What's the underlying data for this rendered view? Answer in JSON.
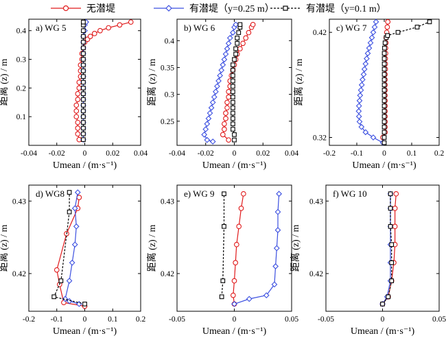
{
  "legend": {
    "series": [
      {
        "label": "无潜堤",
        "color": "#e0191a",
        "marker": "circle",
        "dash": false
      },
      {
        "label": "有潜堤（y=0.25 m）",
        "color": "#3b4fe0",
        "marker": "diamond",
        "dash": false
      },
      {
        "label": "有潜堤（y=0.1 m）",
        "color": "#000000",
        "marker": "square",
        "dash": true
      }
    ]
  },
  "xlabel": "Umean / (m·s⁻¹)",
  "ylabel": "距离 (z) / m",
  "chart_data": [
    {
      "type": "line",
      "title": "a) WG 5",
      "xlim": [
        -0.04,
        0.04
      ],
      "ylim": [
        0,
        0.44
      ],
      "xticks": [
        -0.04,
        -0.02,
        0,
        0.02,
        0.04
      ],
      "xtick_labels": [
        "-0.04",
        "-0.02",
        "0",
        "0.02",
        "0.04"
      ],
      "yticks": [
        0.1,
        0.2,
        0.3,
        0.4
      ],
      "ytick_labels": [
        "0.1",
        "0.2",
        "0.3",
        "0.4"
      ],
      "series": [
        {
          "y": [
            0.02,
            0.04,
            0.06,
            0.08,
            0.1,
            0.12,
            0.14,
            0.16,
            0.18,
            0.2,
            0.22,
            0.24,
            0.26,
            0.28,
            0.3,
            0.32,
            0.34,
            0.36,
            0.37,
            0.38,
            0.39,
            0.4,
            0.41,
            0.42,
            0.43
          ],
          "x": [
            -0.004,
            -0.005,
            -0.005,
            -0.005,
            -0.006,
            -0.006,
            -0.006,
            -0.005,
            -0.005,
            -0.004,
            -0.004,
            -0.003,
            -0.003,
            -0.003,
            -0.002,
            -0.002,
            -0.001,
            0.0,
            0.002,
            0.004,
            0.007,
            0.011,
            0.017,
            0.025,
            0.033
          ]
        },
        {
          "y": [
            0.02,
            0.04,
            0.06,
            0.08,
            0.1,
            0.12,
            0.14,
            0.16,
            0.18,
            0.2,
            0.22,
            0.24,
            0.26,
            0.28,
            0.3,
            0.32,
            0.34,
            0.36,
            0.38,
            0.4,
            0.42,
            0.43
          ],
          "x": [
            -0.001,
            -0.001,
            -0.001,
            -0.001,
            -0.001,
            -0.001,
            -0.001,
            -0.001,
            -0.001,
            -0.001,
            -0.001,
            -0.001,
            -0.001,
            -0.001,
            -0.001,
            -0.001,
            -0.001,
            -0.001,
            -0.001,
            0.0,
            0.0,
            0.001
          ]
        },
        {
          "y": [
            0.02,
            0.04,
            0.06,
            0.08,
            0.1,
            0.12,
            0.14,
            0.16,
            0.18,
            0.2,
            0.22,
            0.24,
            0.26,
            0.28,
            0.3,
            0.32,
            0.34,
            0.36,
            0.38,
            0.4,
            0.42,
            0.43
          ],
          "x": [
            -0.001,
            -0.001,
            -0.001,
            -0.001,
            -0.001,
            -0.001,
            -0.001,
            -0.001,
            -0.001,
            -0.001,
            -0.001,
            -0.001,
            -0.001,
            -0.001,
            -0.001,
            -0.001,
            -0.001,
            -0.001,
            -0.001,
            -0.001,
            -0.001,
            -0.001
          ]
        }
      ]
    },
    {
      "type": "line",
      "title": "b) WG 6",
      "xlim": [
        -0.04,
        0.04
      ],
      "ylim": [
        0.205,
        0.44
      ],
      "xticks": [
        -0.04,
        -0.02,
        0,
        0.02,
        0.04
      ],
      "xtick_labels": [
        "-0.04",
        "-0.02",
        "0",
        "0.02",
        "0.04"
      ],
      "yticks": [
        0.25,
        0.3,
        0.35,
        0.4
      ],
      "ytick_labels": [
        "0.25",
        "0.3",
        "0.35",
        "0.4"
      ],
      "series": [
        {
          "y": [
            0.215,
            0.225,
            0.235,
            0.245,
            0.255,
            0.265,
            0.275,
            0.285,
            0.295,
            0.305,
            0.315,
            0.325,
            0.335,
            0.345,
            0.355,
            0.365,
            0.375,
            0.385,
            0.395,
            0.405,
            0.415,
            0.425,
            0.43
          ],
          "x": [
            -0.004,
            -0.008,
            -0.007,
            -0.007,
            -0.006,
            -0.006,
            -0.005,
            -0.005,
            -0.004,
            -0.004,
            -0.003,
            -0.003,
            -0.002,
            -0.001,
            0.0,
            0.001,
            0.002,
            0.004,
            0.006,
            0.008,
            0.01,
            0.012,
            0.013
          ]
        },
        {
          "y": [
            0.212,
            0.215,
            0.225,
            0.235,
            0.245,
            0.255,
            0.265,
            0.275,
            0.285,
            0.295,
            0.305,
            0.315,
            0.325,
            0.335,
            0.345,
            0.355,
            0.365,
            0.375,
            0.385,
            0.395,
            0.405,
            0.415,
            0.425,
            0.43
          ],
          "x": [
            -0.015,
            -0.019,
            -0.021,
            -0.02,
            -0.019,
            -0.018,
            -0.017,
            -0.016,
            -0.015,
            -0.014,
            -0.013,
            -0.012,
            -0.011,
            -0.01,
            -0.009,
            -0.008,
            -0.007,
            -0.006,
            -0.005,
            -0.004,
            -0.003,
            -0.001,
            0.0,
            0.001
          ]
        },
        {
          "y": [
            0.215,
            0.225,
            0.235,
            0.245,
            0.255,
            0.265,
            0.275,
            0.285,
            0.295,
            0.305,
            0.315,
            0.325,
            0.335,
            0.345,
            0.355,
            0.365,
            0.375,
            0.385,
            0.395,
            0.405,
            0.415,
            0.425,
            0.43
          ],
          "x": [
            0.0,
            0.0,
            -0.001,
            -0.001,
            -0.001,
            -0.001,
            -0.001,
            -0.001,
            -0.001,
            -0.001,
            -0.001,
            -0.001,
            -0.001,
            -0.001,
            -0.001,
            0.0,
            0.001,
            0.001,
            0.002,
            0.002,
            0.003,
            0.004,
            0.004
          ]
        }
      ]
    },
    {
      "type": "line",
      "title": "c) WG 7",
      "xlim": [
        -0.2,
        0.2
      ],
      "ylim": [
        0.3125,
        0.4325
      ],
      "xticks": [
        -0.2,
        -0.1,
        0,
        0.1,
        0.2
      ],
      "xtick_labels": [
        "-0.2",
        "-0.1",
        "0",
        "0.1",
        "0.2"
      ],
      "yticks": [
        0.32,
        0.42
      ],
      "ytick_labels": [
        "0.32",
        "0.42"
      ],
      "series": [
        {
          "y": [
            0.32,
            0.325,
            0.33,
            0.335,
            0.34,
            0.345,
            0.35,
            0.355,
            0.36,
            0.365,
            0.37,
            0.375,
            0.38,
            0.385,
            0.39,
            0.395,
            0.4,
            0.405,
            0.41,
            0.415,
            0.42,
            0.425,
            0.43
          ],
          "x": [
            -0.005,
            0.003,
            0.003,
            0.003,
            0.003,
            0.003,
            0.003,
            0.003,
            0.003,
            0.003,
            0.003,
            0.003,
            0.003,
            0.004,
            0.004,
            0.004,
            0.005,
            0.005,
            0.006,
            0.007,
            0.009,
            0.011,
            0.013
          ]
        },
        {
          "y": [
            0.315,
            0.32,
            0.325,
            0.33,
            0.335,
            0.34,
            0.345,
            0.35,
            0.355,
            0.36,
            0.365,
            0.37,
            0.375,
            0.38,
            0.385,
            0.39,
            0.395,
            0.4,
            0.405,
            0.41,
            0.415,
            0.42,
            0.425,
            0.43
          ],
          "x": [
            -0.005,
            -0.04,
            -0.068,
            -0.083,
            -0.09,
            -0.092,
            -0.093,
            -0.092,
            -0.09,
            -0.088,
            -0.085,
            -0.082,
            -0.079,
            -0.075,
            -0.072,
            -0.068,
            -0.064,
            -0.06,
            -0.055,
            -0.05,
            -0.045,
            -0.04,
            -0.035,
            -0.03
          ]
        },
        {
          "y": [
            0.315,
            0.32,
            0.325,
            0.33,
            0.335,
            0.34,
            0.345,
            0.35,
            0.355,
            0.36,
            0.365,
            0.37,
            0.375,
            0.38,
            0.385,
            0.39,
            0.395,
            0.4,
            0.405,
            0.41,
            0.415,
            0.417,
            0.42,
            0.425,
            0.43
          ],
          "x": [
            0.0,
            0.0,
            0.0,
            0.0,
            0.0,
            0.0,
            0.0,
            0.0,
            0.0,
            0.0,
            0.0,
            0.0,
            0.0,
            0.0,
            0.0,
            0.0,
            0.0,
            0.0,
            0.001,
            0.003,
            0.007,
            0.012,
            0.05,
            0.12,
            0.165
          ]
        }
      ]
    },
    {
      "type": "line",
      "title": "d) WG8",
      "xlim": [
        -0.2,
        0.2
      ],
      "ylim": [
        0.4148,
        0.4322
      ],
      "xticks": [
        -0.2,
        -0.1,
        0,
        0.1,
        0.2
      ],
      "xtick_labels": [
        "-0.2",
        "-0.1",
        "0",
        "0.1",
        "0.2"
      ],
      "yticks": [
        0.42,
        0.43
      ],
      "ytick_labels": [
        "0.42",
        "0.43"
      ],
      "series": [
        {
          "y": [
            0.4155,
            0.416,
            0.4185,
            0.4205,
            0.4255,
            0.429,
            0.4305
          ],
          "x": [
            0.0,
            -0.075,
            -0.09,
            -0.1,
            -0.065,
            -0.025,
            -0.02
          ]
        },
        {
          "y": [
            0.4158,
            0.4162,
            0.4165,
            0.419,
            0.4215,
            0.424,
            0.4265,
            0.429,
            0.4312
          ],
          "x": [
            -0.02,
            -0.055,
            -0.07,
            -0.055,
            -0.045,
            -0.035,
            -0.03,
            -0.035,
            -0.025
          ]
        },
        {
          "y": [
            0.4158,
            0.4168,
            0.419,
            0.4285,
            0.4312
          ],
          "x": [
            0.0,
            -0.11,
            -0.085,
            -0.055,
            -0.055
          ]
        }
      ]
    },
    {
      "type": "line",
      "title": "e) WG 9",
      "xlim": [
        -0.05,
        0.05
      ],
      "ylim": [
        0.4148,
        0.4322
      ],
      "xticks": [
        -0.05,
        0,
        0.05
      ],
      "xtick_labels": [
        "-0.05",
        "0",
        "0.05"
      ],
      "yticks": [
        0.42,
        0.43
      ],
      "ytick_labels": [
        "0.42",
        "0.43"
      ],
      "series": [
        {
          "y": [
            0.4158,
            0.417,
            0.419,
            0.4215,
            0.424,
            0.4265,
            0.429,
            0.431
          ],
          "x": [
            0.0,
            -0.001,
            0.0,
            0.001,
            0.002,
            0.004,
            0.006,
            0.008
          ]
        },
        {
          "y": [
            0.4158,
            0.4165,
            0.417,
            0.4185,
            0.421,
            0.4235,
            0.426,
            0.4285,
            0.431
          ],
          "x": [
            0.0,
            0.013,
            0.028,
            0.035,
            0.036,
            0.037,
            0.038,
            0.038,
            0.039
          ]
        },
        {
          "y": [
            0.4168,
            0.419,
            0.4265,
            0.431
          ],
          "x": [
            -0.011,
            -0.01,
            -0.009,
            -0.009
          ]
        }
      ]
    },
    {
      "type": "line",
      "title": "f) WG 10",
      "xlim": [
        -0.05,
        0.05
      ],
      "ylim": [
        0.4148,
        0.4322
      ],
      "xticks": [
        -0.05,
        0,
        0.05
      ],
      "xtick_labels": [
        "-0.05",
        "0",
        "0.05"
      ],
      "yticks": [
        0.42,
        0.43
      ],
      "ytick_labels": [
        "0.42",
        "0.43"
      ],
      "series": [
        {
          "y": [
            0.4158,
            0.4168,
            0.419,
            0.4215,
            0.424,
            0.4265,
            0.429,
            0.431
          ],
          "x": [
            0.0,
            0.005,
            0.008,
            0.01,
            0.011,
            0.011,
            0.011,
            0.012
          ]
        },
        {
          "y": [
            0.4158,
            0.4168,
            0.419,
            0.4215,
            0.424,
            0.4265,
            0.429,
            0.431
          ],
          "x": [
            0.0,
            0.004,
            0.007,
            0.007,
            0.007,
            0.007,
            0.007,
            0.007
          ]
        },
        {
          "y": [
            0.4158,
            0.4168,
            0.419,
            0.4215,
            0.424,
            0.4265,
            0.429,
            0.431
          ],
          "x": [
            0.0,
            0.005,
            0.008,
            0.008,
            0.008,
            0.007,
            0.007,
            0.007
          ]
        }
      ]
    }
  ]
}
